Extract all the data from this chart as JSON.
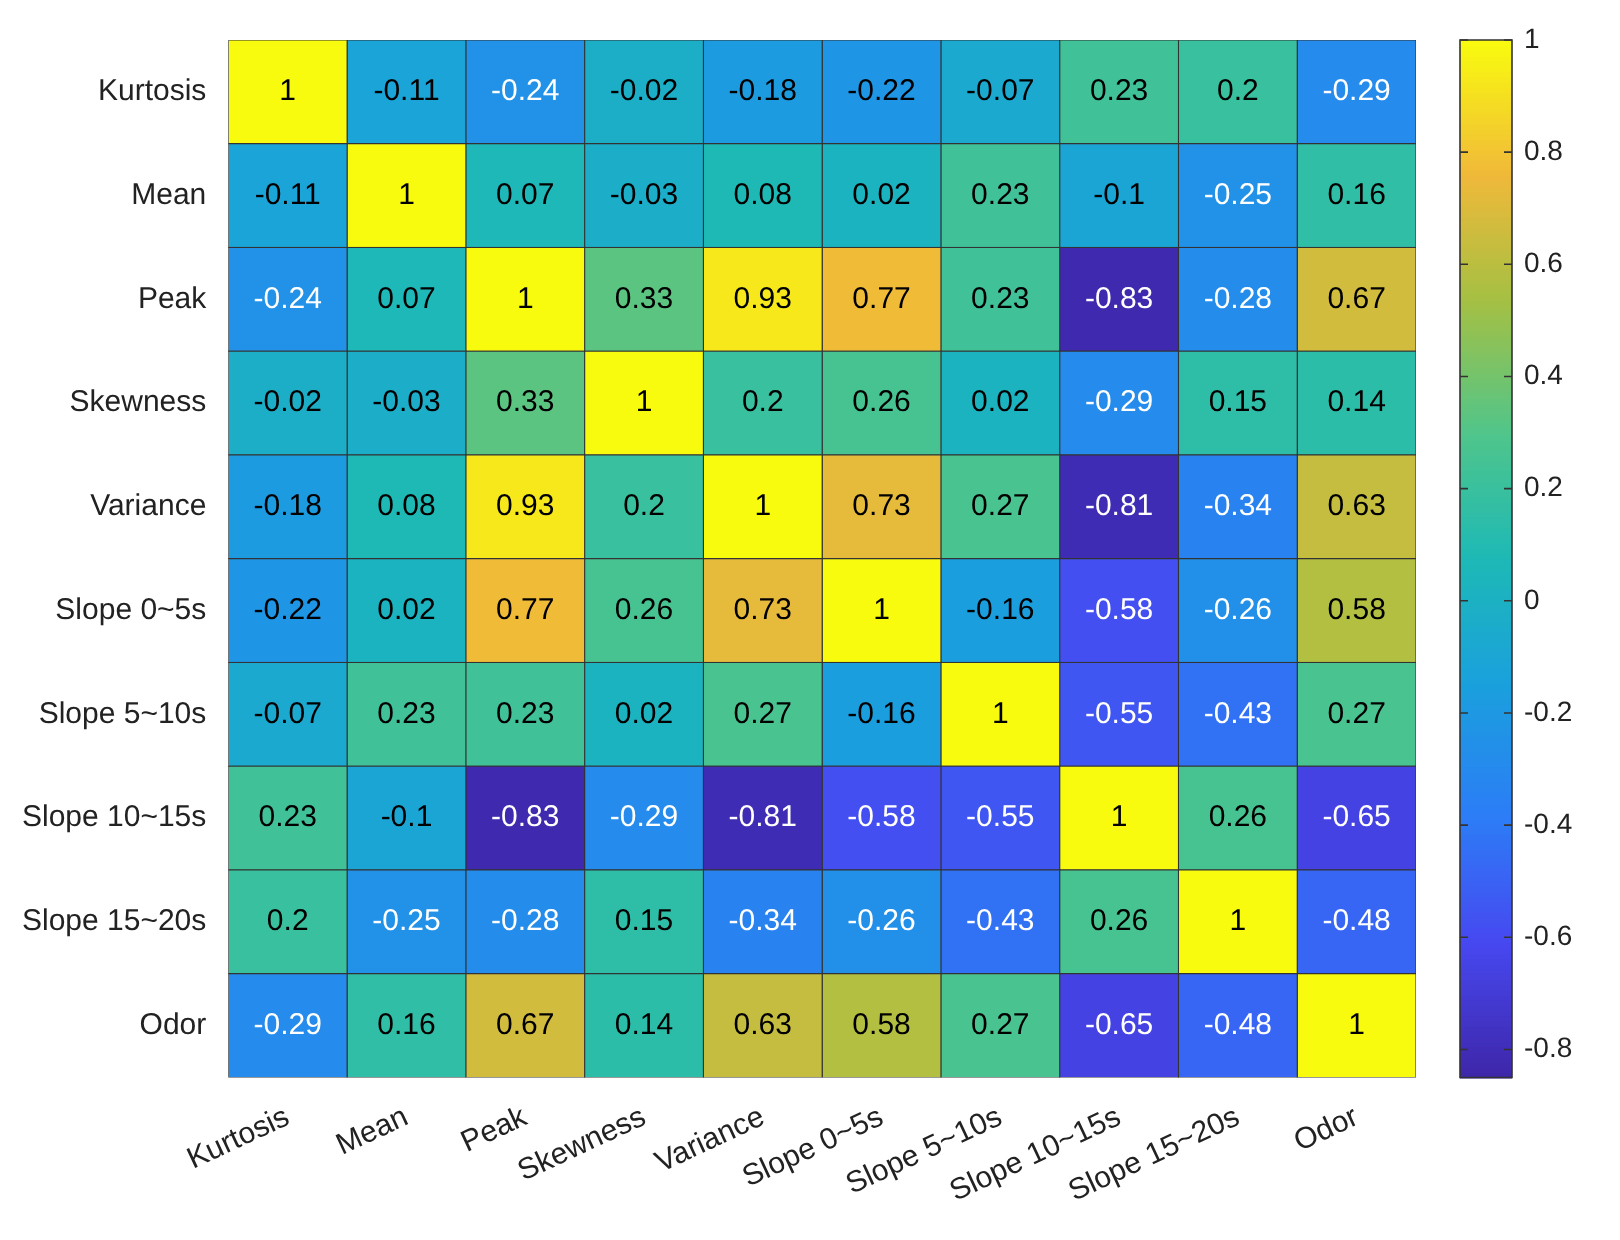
{
  "chart_data": {
    "type": "heatmap",
    "categories": [
      "Kurtosis",
      "Mean",
      "Peak",
      "Skewness",
      "Variance",
      "Slope 0~5s",
      "Slope 5~10s",
      "Slope 10~15s",
      "Slope 15~20s",
      "Odor"
    ],
    "y_categories": [
      "Kurtosis",
      "Mean",
      "Peak",
      "Skewness",
      "Variance",
      "Slope 0~5s",
      "Slope 5~10s",
      "Slope 10~15s",
      "Slope 15~20s",
      "Odor"
    ],
    "cells": [
      [
        1,
        -0.11,
        -0.24,
        -0.02,
        -0.18,
        -0.22,
        -0.07,
        0.23,
        0.2,
        -0.29
      ],
      [
        -0.11,
        1,
        0.07,
        -0.03,
        0.08,
        0.02,
        0.23,
        -0.1,
        -0.25,
        0.16
      ],
      [
        -0.24,
        0.07,
        1,
        0.33,
        0.93,
        0.77,
        0.23,
        -0.83,
        -0.28,
        0.67
      ],
      [
        -0.02,
        -0.03,
        0.33,
        1,
        0.2,
        0.26,
        0.02,
        -0.29,
        0.15,
        0.14
      ],
      [
        -0.18,
        0.08,
        0.93,
        0.2,
        1,
        0.73,
        0.27,
        -0.81,
        -0.34,
        0.63
      ],
      [
        -0.22,
        0.02,
        0.77,
        0.26,
        0.73,
        1,
        -0.16,
        -0.58,
        -0.26,
        0.58
      ],
      [
        -0.07,
        0.23,
        0.23,
        0.02,
        0.27,
        -0.16,
        1,
        -0.55,
        -0.43,
        0.27
      ],
      [
        0.23,
        -0.1,
        -0.83,
        -0.29,
        -0.81,
        -0.58,
        -0.55,
        1,
        0.26,
        -0.65
      ],
      [
        0.2,
        -0.25,
        -0.28,
        0.15,
        -0.34,
        -0.26,
        -0.43,
        0.26,
        1,
        -0.48
      ],
      [
        -0.29,
        0.16,
        0.67,
        0.14,
        0.63,
        0.58,
        0.27,
        -0.65,
        -0.48,
        1
      ]
    ],
    "clim": [
      -0.85,
      1
    ],
    "cticks": [
      -0.8,
      -0.6,
      -0.4,
      -0.2,
      0,
      0.2,
      0.4,
      0.6,
      0.8,
      1
    ],
    "data_labels": true
  }
}
